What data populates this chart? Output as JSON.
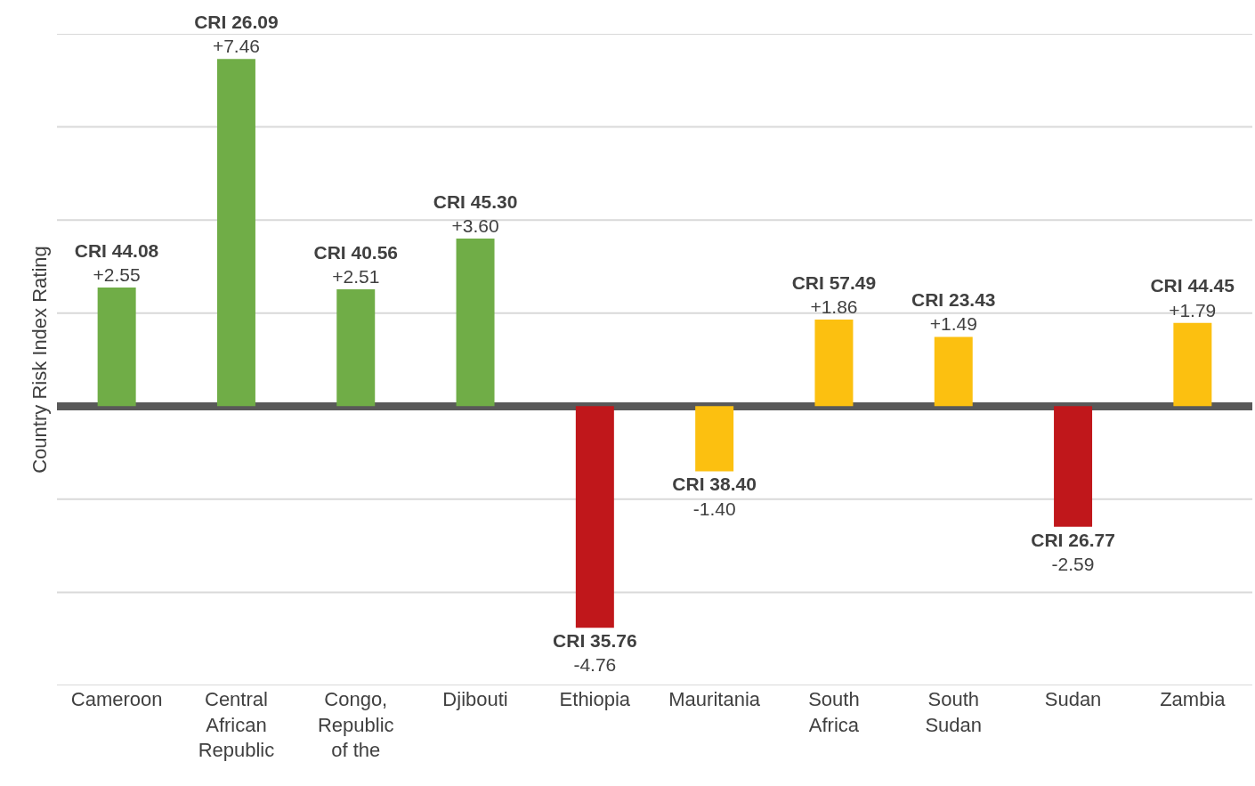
{
  "chart_data": {
    "type": "bar",
    "ylabel": "Country Risk Index Rating",
    "categories": [
      "Cameroon",
      "Central African Republic",
      "Congo, Republic of the",
      "Djibouti",
      "Ethiopia",
      "Mauritania",
      "South Africa",
      "South Sudan",
      "Sudan",
      "Zambia"
    ],
    "values": [
      2.55,
      7.46,
      2.51,
      3.6,
      -4.76,
      -1.4,
      1.86,
      1.49,
      -2.59,
      1.79
    ],
    "colors": [
      "#70ad47",
      "#70ad47",
      "#70ad47",
      "#70ad47",
      "#c0171b",
      "#fcc010",
      "#fcc010",
      "#fcc010",
      "#c0171b",
      "#fcc010"
    ],
    "value_labels": [
      "CRI 44.08\n+2.55",
      "CRI 26.09\n+7.46",
      "CRI 40.56\n+2.51",
      "CRI 45.30\n+3.60",
      "CRI 35.76\n-4.76",
      "CRI 38.40\n-1.40",
      "CRI 57.49\n+1.86",
      "CRI 23.43\n+1.49",
      "CRI 26.77\n-2.59",
      "CRI 44.45\n+1.79"
    ],
    "ylim": [
      -6,
      8
    ],
    "yticks": [
      {
        "value": -6,
        "label": null
      },
      {
        "value": -4,
        "label": null
      },
      {
        "value": -2,
        "label": null
      },
      {
        "value": 0,
        "label": null
      },
      {
        "value": 2,
        "label": null
      },
      {
        "value": 4,
        "label": null
      },
      {
        "value": 6,
        "label": null
      },
      {
        "value": 8,
        "label": null
      }
    ],
    "grid": "y",
    "tick_labels": "x"
  }
}
